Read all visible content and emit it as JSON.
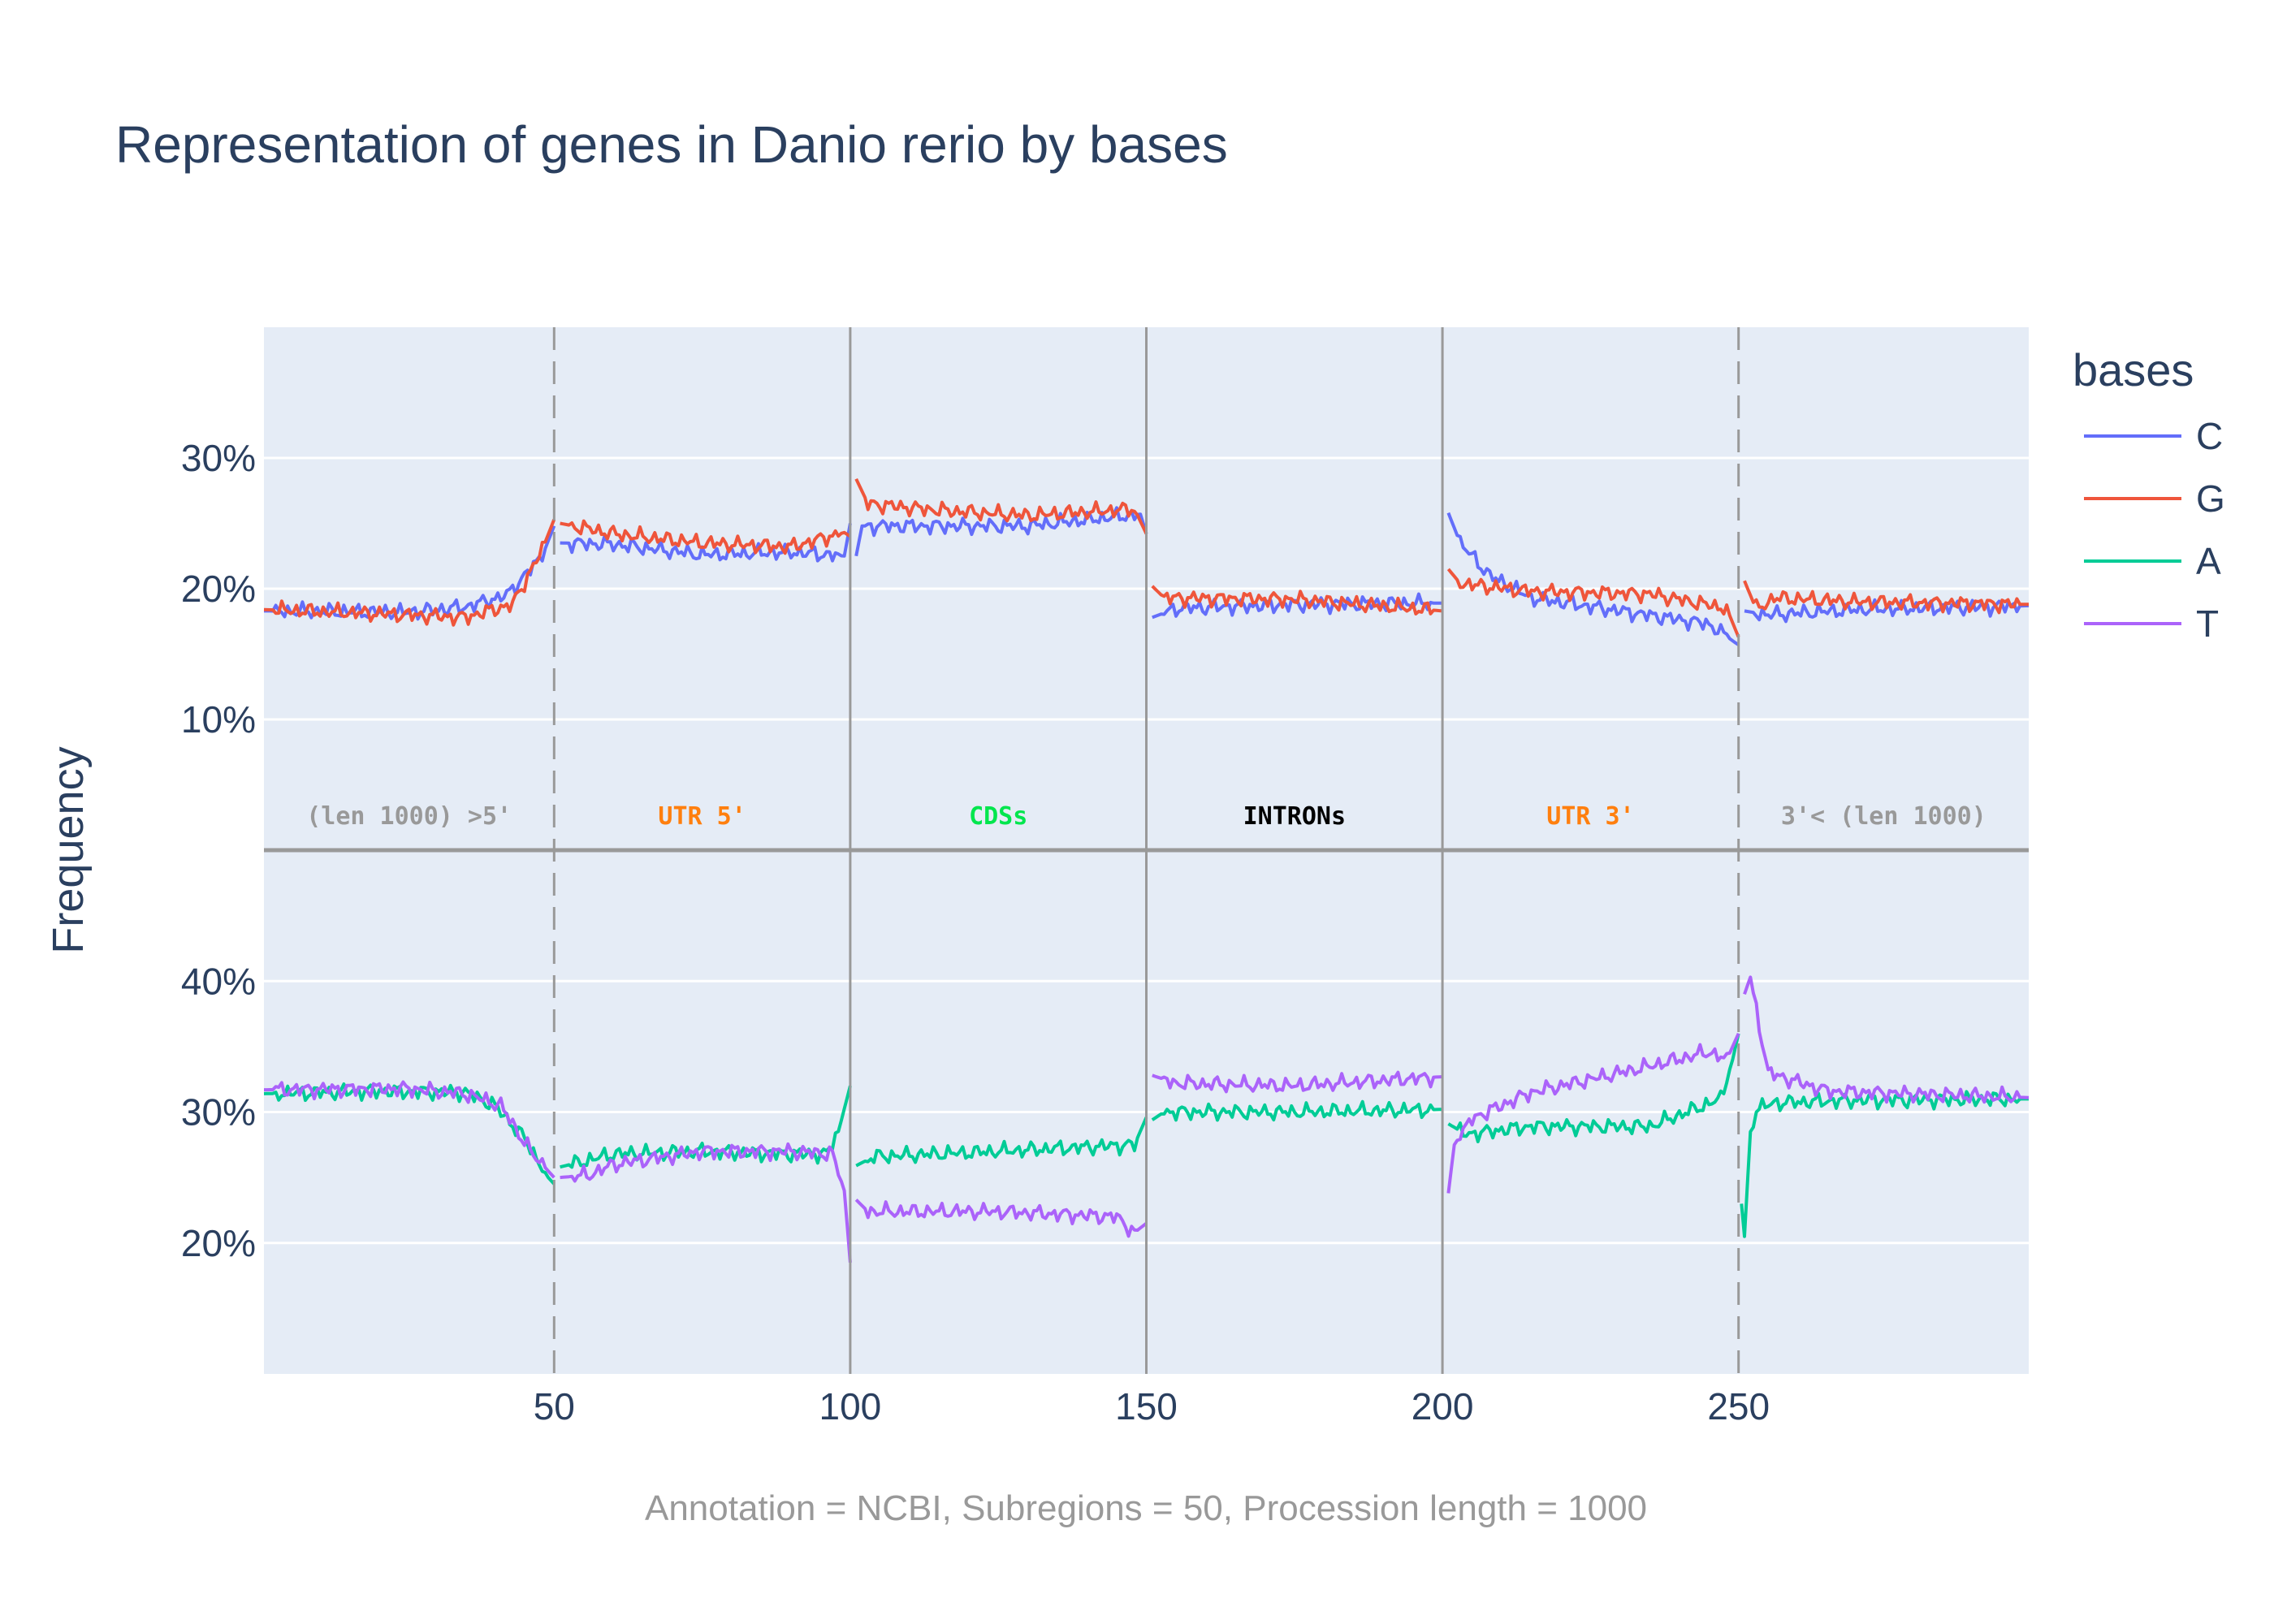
{
  "title": "Representation of genes in Danio rerio by bases",
  "caption": "Annotation = NCBI, Subregions = 50, Procession length = 1000",
  "colors": {
    "plot_bg": "#e5ecf6",
    "grid": "#ffffff",
    "divider": "#999999",
    "C": "#636efa",
    "G": "#ef553b",
    "A": "#00cc96",
    "T": "#ab63fa"
  },
  "chart_data": {
    "type": "line",
    "ylabel": "Frequency",
    "xlabel": "",
    "xlim": [
      1,
      299
    ],
    "x_ticks": [
      "50",
      "100",
      "150",
      "200",
      "250"
    ],
    "legend_title": "bases",
    "legend_position": "right",
    "legend": [
      "C",
      "G",
      "A",
      "T"
    ],
    "region_labels": [
      {
        "text": "(len 1000) >5'",
        "color": "#999999"
      },
      {
        "text": "UTR 5'",
        "color": "#ff7f0e"
      },
      {
        "text": "CDSs",
        "color": "#00e64d"
      },
      {
        "text": "INTRONs",
        "color": "#000000"
      },
      {
        "text": "UTR 3'",
        "color": "#ff7f0e"
      },
      {
        "text": "3'< (len 1000)",
        "color": "#999999"
      }
    ],
    "region_boundaries": [
      50,
      100,
      150,
      200,
      250
    ],
    "top_panel": {
      "ylim": [
        0,
        40
      ],
      "y_ticks": [
        "10%",
        "20%",
        "30%"
      ],
      "series_profiles": [
        {
          "name": "C",
          "segments": [
            {
              "x": [
                1,
                25,
                35,
                42,
                48,
                50
              ],
              "y": [
                18.3,
                18.2,
                18.6,
                19.5,
                22.5,
                24.8
              ]
            },
            {
              "x": [
                51,
                60,
                75,
                90,
                99,
                100
              ],
              "y": [
                23.5,
                23.4,
                22.6,
                22.8,
                22.5,
                25.0
              ]
            },
            {
              "x": [
                101,
                102,
                130,
                149,
                150
              ],
              "y": [
                22.5,
                24.8,
                24.8,
                25.7,
                24.2
              ]
            },
            {
              "x": [
                151,
                155,
                175,
                200
              ],
              "y": [
                17.8,
                18.5,
                18.8,
                18.9
              ]
            },
            {
              "x": [
                201,
                203,
                208,
                215,
                230,
                245,
                250
              ],
              "y": [
                25.8,
                23.5,
                21.0,
                19.3,
                18.3,
                17.3,
                15.7
              ]
            },
            {
              "x": [
                251,
                255,
                270,
                299
              ],
              "y": [
                18.3,
                18.0,
                18.4,
                18.7
              ]
            }
          ]
        },
        {
          "name": "G",
          "segments": [
            {
              "x": [
                1,
                20,
                35,
                43,
                48,
                50
              ],
              "y": [
                18.4,
                18.1,
                17.8,
                18.8,
                23.0,
                25.3
              ]
            },
            {
              "x": [
                51,
                60,
                75,
                90,
                99,
                100
              ],
              "y": [
                25.0,
                24.2,
                23.5,
                23.2,
                24.3,
                24.0
              ]
            },
            {
              "x": [
                101,
                103,
                115,
                130,
                148,
                150
              ],
              "y": [
                28.4,
                26.5,
                26.0,
                25.6,
                26.1,
                24.2
              ]
            },
            {
              "x": [
                151,
                153,
                175,
                200
              ],
              "y": [
                20.2,
                19.3,
                19.2,
                18.3
              ]
            },
            {
              "x": [
                201,
                203,
                215,
                235,
                248,
                250
              ],
              "y": [
                21.5,
                20.4,
                19.8,
                19.6,
                18.5,
                16.3
              ]
            },
            {
              "x": [
                251,
                253,
                256,
                270,
                299
              ],
              "y": [
                20.6,
                18.4,
                19.3,
                19.0,
                18.8
              ]
            }
          ]
        }
      ]
    },
    "bottom_panel": {
      "ylim": [
        10,
        50
      ],
      "y_ticks": [
        "20%",
        "30%",
        "40%"
      ],
      "series_profiles": [
        {
          "name": "A",
          "segments": [
            {
              "x": [
                1,
                20,
                35,
                40,
                45,
                49,
                50
              ],
              "y": [
                31.4,
                31.6,
                31.5,
                30.5,
                28.0,
                25.0,
                24.5
              ]
            },
            {
              "x": [
                51,
                60,
                75,
                90,
                96,
                98,
                100
              ],
              "y": [
                25.8,
                26.8,
                27.0,
                26.8,
                26.8,
                28.5,
                32.0
              ]
            },
            {
              "x": [
                101,
                104,
                120,
                148,
                150
              ],
              "y": [
                25.9,
                26.6,
                26.9,
                27.5,
                29.6
              ]
            },
            {
              "x": [
                151,
                153,
                175,
                200
              ],
              "y": [
                29.4,
                30.0,
                30.0,
                30.2
              ]
            },
            {
              "x": [
                201,
                204,
                215,
                235,
                247,
                249,
                250
              ],
              "y": [
                29.1,
                28.3,
                28.9,
                28.9,
                31.0,
                34.0,
                36.0
              ]
            },
            {
              "x": [
                250.5,
                251,
                252,
                253,
                256,
                270,
                299
              ],
              "y": [
                23.0,
                20.5,
                28.5,
                30.2,
                30.7,
                30.9,
                31.0
              ]
            }
          ]
        },
        {
          "name": "T",
          "segments": [
            {
              "x": [
                1,
                25,
                35,
                41,
                46,
                50
              ],
              "y": [
                31.7,
                31.8,
                31.4,
                30.5,
                27.0,
                25.0
              ]
            },
            {
              "x": [
                51,
                56,
                60,
                75,
                90,
                97,
                99,
                100
              ],
              "y": [
                25.0,
                25.2,
                26.0,
                27.0,
                27.0,
                26.8,
                24.0,
                18.5
              ]
            },
            {
              "x": [
                101,
                103,
                125,
                145,
                148,
                150
              ],
              "y": [
                23.3,
                22.4,
                22.4,
                22.0,
                20.8,
                21.5
              ]
            },
            {
              "x": [
                151,
                155,
                175,
                200
              ],
              "y": [
                32.8,
                32.2,
                32.0,
                32.7
              ]
            },
            {
              "x": [
                201,
                202,
                205,
                215,
                235,
                245,
                248,
                250
              ],
              "y": [
                23.8,
                27.5,
                29.5,
                31.5,
                33.5,
                34.6,
                34.0,
                36.0
              ]
            },
            {
              "x": [
                251,
                252,
                255,
                265,
                299
              ],
              "y": [
                39.0,
                40.3,
                33.0,
                31.6,
                31.1
              ]
            }
          ]
        }
      ]
    }
  }
}
